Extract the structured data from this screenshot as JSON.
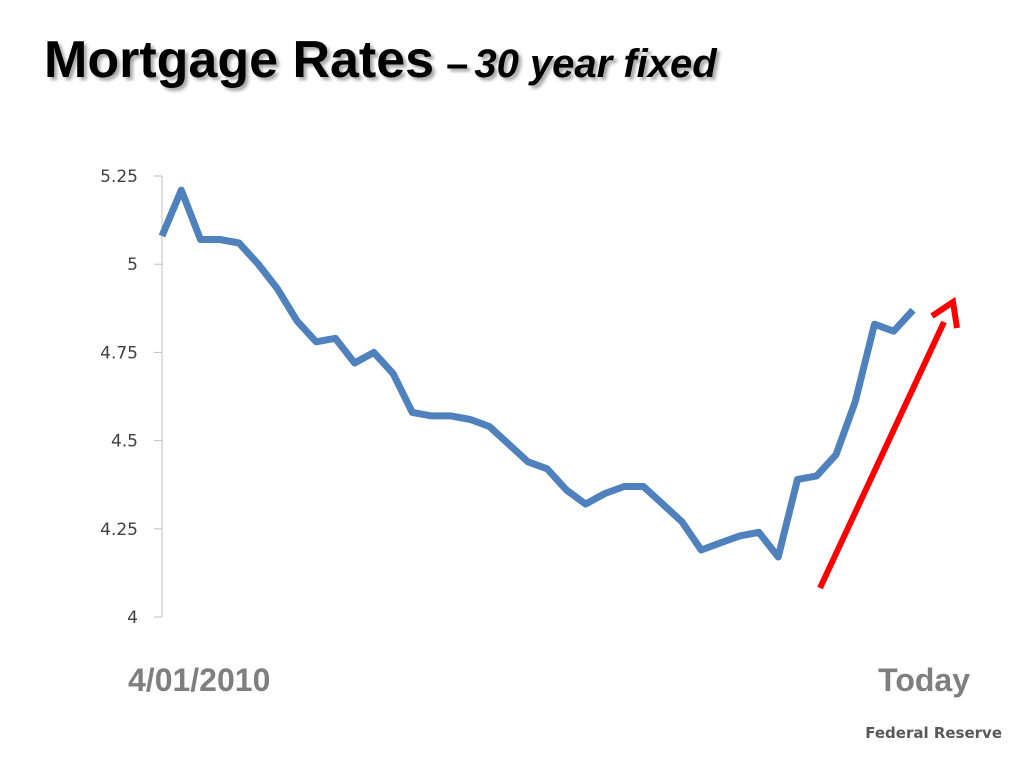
{
  "slide": {
    "title": "Mortgage Rates",
    "title_dash": "–",
    "subtitle": "30 year fixed",
    "start_label": "4/01/2010",
    "end_label": "Today",
    "source": "Federal Reserve"
  },
  "colors": {
    "line": "#4f81bd",
    "arrow": "#ff0000",
    "axis": "#bfbfbf",
    "tick_text": "#404040",
    "date_labels": "#7f7f7f"
  },
  "chart_data": {
    "type": "line",
    "title": "Mortgage Rates – 30 year fixed",
    "xlabel": "",
    "ylabel": "",
    "ylim": [
      4,
      5.25
    ],
    "yticks": [
      4,
      4.25,
      4.5,
      4.75,
      5,
      5.25
    ],
    "ytick_labels": [
      "4",
      "4.25",
      "4.5",
      "4.75",
      "5",
      "5.25"
    ],
    "grid": false,
    "series": [
      {
        "values": [
          5.08,
          5.21,
          5.07,
          5.07,
          5.06,
          5.0,
          4.93,
          4.84,
          4.78,
          4.79,
          4.72,
          4.75,
          4.69,
          4.58,
          4.57,
          4.57,
          4.56,
          4.54,
          4.49,
          4.44,
          4.42,
          4.36,
          4.32,
          4.35,
          4.37,
          4.37,
          4.32,
          4.27,
          4.19,
          4.21,
          4.23,
          4.24,
          4.17,
          4.39,
          4.4,
          4.46,
          4.61,
          4.83,
          4.81,
          4.87
        ]
      }
    ],
    "annotations": [
      {
        "type": "arrow",
        "direction": "up",
        "color": "#ff0000"
      }
    ]
  }
}
